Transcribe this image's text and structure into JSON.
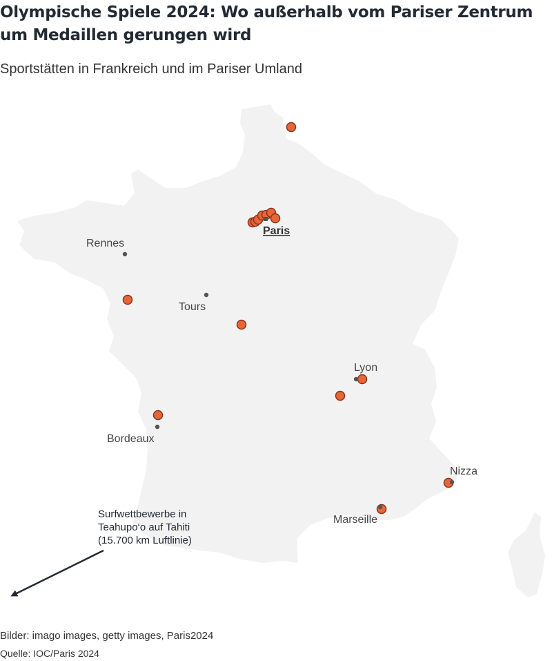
{
  "header": {
    "title": "Olympische Spiele 2024: Wo außerhalb vom Pariser Zentrum um Medaillen gerungen wird",
    "subtitle": "Sportstätten in Frankreich und im Pariser Umland"
  },
  "map": {
    "land_color": "#f2f2f2",
    "venue_color": "#e8653a",
    "venue_stroke": "#8a3318",
    "city_dot_color": "#555555",
    "capital": {
      "label": "Paris"
    },
    "cities": [
      {
        "id": "rennes",
        "label": "Rennes"
      },
      {
        "id": "tours",
        "label": "Tours"
      },
      {
        "id": "lyon",
        "label": "Lyon"
      },
      {
        "id": "bordeaux",
        "label": "Bordeaux"
      },
      {
        "id": "nizza",
        "label": "Nizza"
      },
      {
        "id": "marseille",
        "label": "Marseille"
      }
    ],
    "annotation": {
      "lines": [
        "Surfwettbewerbe in",
        "Teahupo‘o auf Tahiti",
        "(15.700 km Luftlinie)"
      ]
    }
  },
  "footer": {
    "credit": "Bilder: imago images, getty images, Paris2024",
    "source": "Quelle: IOC/Paris 2024"
  }
}
